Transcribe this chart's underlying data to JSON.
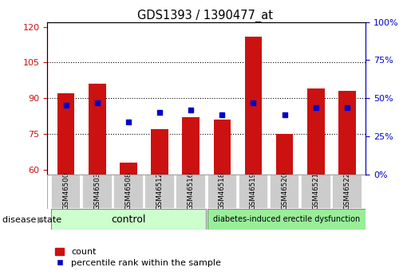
{
  "title": "GDS1393 / 1390477_at",
  "samples": [
    "GSM46500",
    "GSM46503",
    "GSM46508",
    "GSM46512",
    "GSM46516",
    "GSM46518",
    "GSM46519",
    "GSM46520",
    "GSM46521",
    "GSM46522"
  ],
  "bar_values": [
    92,
    96,
    63,
    77,
    82,
    81,
    116,
    75,
    94,
    93
  ],
  "dot_values": [
    87,
    88,
    80,
    84,
    85,
    83,
    88,
    83,
    86,
    86
  ],
  "ylim_left": [
    58,
    122
  ],
  "yticks_left": [
    60,
    75,
    90,
    105,
    120
  ],
  "yticks_right": [
    0,
    25,
    50,
    75,
    100
  ],
  "ylim_right": [
    0,
    100
  ],
  "bar_color": "#cc1111",
  "dot_color": "#0000cc",
  "bg_plot": "#ffffff",
  "control_label": "control",
  "disease_label": "diabetes-induced erectile dysfunction",
  "disease_state_label": "disease state",
  "legend_count": "count",
  "legend_percentile": "percentile rank within the sample",
  "control_color": "#ccffcc",
  "disease_color": "#99ee99",
  "bar_bottom": 58,
  "label_bg": "#cccccc"
}
